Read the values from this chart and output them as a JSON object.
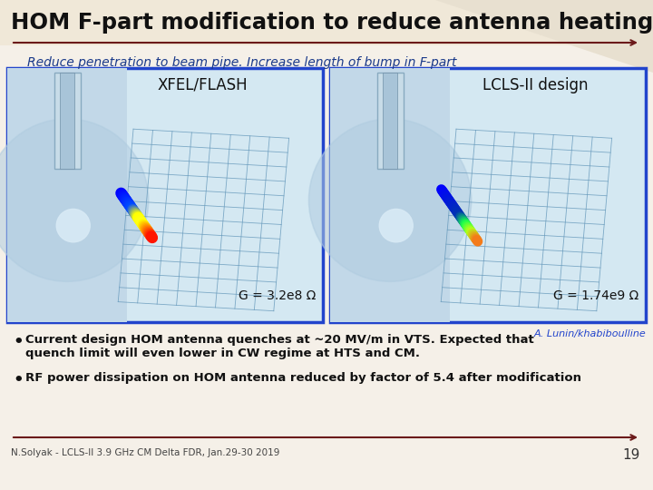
{
  "title": "HOM F-part modification to reduce antenna heating",
  "subtitle": "Reduce penetration to beam pipe. Increase length of bump in F-part",
  "left_label": "XFEL/FLASH",
  "right_label": "LCLS-II design",
  "left_g": "G = 3.2e8 Ω",
  "right_g": "G = 1.74e9 Ω",
  "credit": "A. Lunin/khabiboulline",
  "bullet1": "Current design HOM antenna quenches at ~20 MV/m in VTS. Expected that\nquench limit will even lower in CW regime at HTS and CM.",
  "bullet2": "RF power dissipation on HOM antenna reduced by factor of 5.4 after modification",
  "footer": "N.Solyak - LCLS-II 3.9 GHz CM Delta FDR, Jan.29-30 2019",
  "page_num": "19",
  "bg_top": "#f0e8d8",
  "bg_bottom": "#f5f0e8",
  "title_color": "#111111",
  "subtitle_color": "#1a3a8a",
  "box_border_color": "#2244cc",
  "line_color": "#6b1a1a",
  "bullet_color": "#111111",
  "credit_color": "#2244cc",
  "image_bg": "#c8dce8",
  "image_bg2": "#c0d4e4"
}
